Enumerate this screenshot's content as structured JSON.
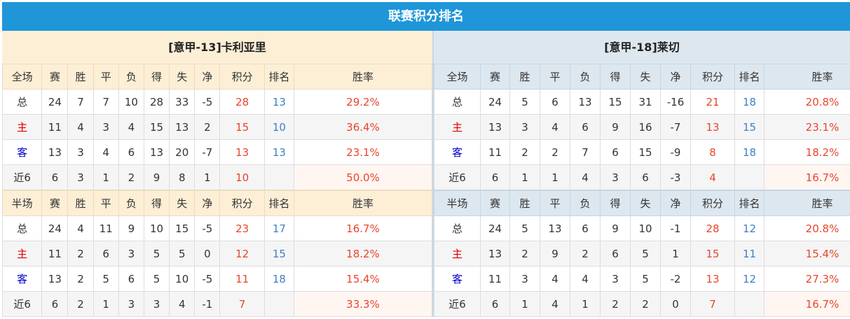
{
  "title": "联赛积分排名",
  "columns": [
    "赛",
    "胜",
    "平",
    "负",
    "得",
    "失",
    "净",
    "积分",
    "排名",
    "胜率"
  ],
  "teams": [
    {
      "name": "[意甲-13]卡利亚里",
      "sections": [
        {
          "label": "全场",
          "rows": [
            [
              "总",
              "24",
              "7",
              "7",
              "10",
              "28",
              "33",
              "-5",
              "28",
              "13",
              "29.2%"
            ],
            [
              "主",
              "11",
              "4",
              "3",
              "4",
              "15",
              "13",
              "2",
              "15",
              "10",
              "36.4%"
            ],
            [
              "客",
              "13",
              "3",
              "4",
              "6",
              "13",
              "20",
              "-7",
              "13",
              "13",
              "23.1%"
            ],
            [
              "近6",
              "6",
              "3",
              "1",
              "2",
              "9",
              "8",
              "1",
              "10",
              "",
              "50.0%"
            ]
          ]
        },
        {
          "label": "半场",
          "rows": [
            [
              "总",
              "24",
              "4",
              "11",
              "9",
              "10",
              "15",
              "-5",
              "23",
              "17",
              "16.7%"
            ],
            [
              "主",
              "11",
              "2",
              "6",
              "3",
              "5",
              "5",
              "0",
              "12",
              "15",
              "18.2%"
            ],
            [
              "客",
              "13",
              "2",
              "5",
              "6",
              "5",
              "10",
              "-5",
              "11",
              "18",
              "15.4%"
            ],
            [
              "近6",
              "6",
              "2",
              "1",
              "3",
              "3",
              "4",
              "-1",
              "7",
              "",
              "33.3%"
            ]
          ]
        }
      ]
    },
    {
      "name": "[意甲-18]莱切",
      "sections": [
        {
          "label": "全场",
          "rows": [
            [
              "总",
              "24",
              "5",
              "6",
              "13",
              "15",
              "31",
              "-16",
              "21",
              "18",
              "20.8%"
            ],
            [
              "主",
              "13",
              "3",
              "4",
              "6",
              "9",
              "16",
              "-7",
              "13",
              "15",
              "23.1%"
            ],
            [
              "客",
              "11",
              "2",
              "2",
              "7",
              "6",
              "15",
              "-9",
              "8",
              "18",
              "18.2%"
            ],
            [
              "近6",
              "6",
              "1",
              "1",
              "4",
              "3",
              "6",
              "-3",
              "4",
              "",
              "16.7%"
            ]
          ]
        },
        {
          "label": "半场",
          "rows": [
            [
              "总",
              "24",
              "5",
              "13",
              "6",
              "9",
              "10",
              "-1",
              "28",
              "12",
              "20.8%"
            ],
            [
              "主",
              "13",
              "2",
              "9",
              "2",
              "6",
              "5",
              "1",
              "15",
              "11",
              "15.4%"
            ],
            [
              "客",
              "11",
              "3",
              "4",
              "4",
              "3",
              "5",
              "-2",
              "13",
              "12",
              "27.3%"
            ],
            [
              "近6",
              "6",
              "1",
              "4",
              "1",
              "2",
              "2",
              "0",
              "7",
              "",
              "16.7%"
            ]
          ]
        }
      ]
    }
  ],
  "colors": {
    "title_bar": "#1e96d8",
    "points": "#e8452c",
    "rank": "#3c80c6",
    "home": "#e00000",
    "away": "#0000c8"
  }
}
